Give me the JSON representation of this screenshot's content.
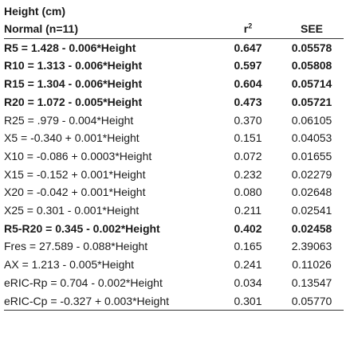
{
  "table": {
    "group_title": "Height (cm)",
    "columns": {
      "label": "Normal (n=11)",
      "r_base": "r",
      "r_sup": "2",
      "see": "SEE"
    },
    "rows": [
      {
        "eq": "R5 = 1.428 - 0.006*Height",
        "r2": "0.647",
        "see": "0.05578",
        "bold": true
      },
      {
        "eq": "R10 = 1.313 - 0.006*Height",
        "r2": "0.597",
        "see": "0.05808",
        "bold": true
      },
      {
        "eq": "R15 = 1.304 - 0.006*Height",
        "r2": "0.604",
        "see": "0.05714",
        "bold": true
      },
      {
        "eq": "R20 = 1.072 - 0.005*Height",
        "r2": "0.473",
        "see": "0.05721",
        "bold": true
      },
      {
        "eq": "R25 = .979 - 0.004*Height",
        "r2": "0.370",
        "see": "0.06105",
        "bold": false
      },
      {
        "eq": "X5 = -0.340 + 0.001*Height",
        "r2": "0.151",
        "see": "0.04053",
        "bold": false
      },
      {
        "eq": "X10 = -0.086 + 0.0003*Height",
        "r2": "0.072",
        "see": "0.01655",
        "bold": false
      },
      {
        "eq": "X15 = -0.152 + 0.001*Height",
        "r2": "0.232",
        "see": "0.02279",
        "bold": false
      },
      {
        "eq": "X20 = -0.042 + 0.001*Height",
        "r2": "0.080",
        "see": "0.02648",
        "bold": false
      },
      {
        "eq": "X25 = 0.301 - 0.001*Height",
        "r2": "0.211",
        "see": "0.02541",
        "bold": false
      },
      {
        "eq": "R5-R20 = 0.345 - 0.002*Height",
        "r2": "0.402",
        "see": "0.02458",
        "bold": true
      },
      {
        "eq": "Fres = 27.589 - 0.088*Height",
        "r2": "0.165",
        "see": "2.39063",
        "bold": false
      },
      {
        "eq": "AX = 1.213 - 0.005*Height",
        "r2": "0.241",
        "see": "0.11026",
        "bold": false
      },
      {
        "eq": "eRIC-Rp = 0.704 - 0.002*Height",
        "r2": "0.034",
        "see": "0.13547",
        "bold": false
      },
      {
        "eq": "eRIC-Cp = -0.327 + 0.003*Height",
        "r2": "0.301",
        "see": "0.05770",
        "bold": false
      }
    ]
  }
}
